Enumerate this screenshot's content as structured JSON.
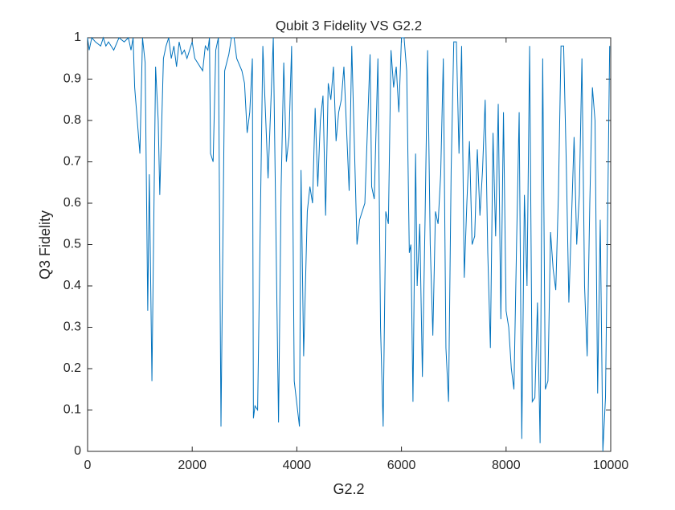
{
  "chart_data": {
    "type": "line",
    "title": "Qubit 3 Fidelity VS G2.2",
    "xlabel": "G2.2",
    "ylabel": "Q3 Fidelity",
    "color": "#0072bd",
    "grid": false,
    "x": [
      0,
      30,
      80,
      150,
      250,
      300,
      350,
      400,
      500,
      600,
      700,
      780,
      830,
      870,
      900,
      1000,
      1050,
      1100,
      1150,
      1180,
      1230,
      1300,
      1350,
      1380,
      1450,
      1500,
      1550,
      1600,
      1650,
      1700,
      1750,
      1800,
      1850,
      1900,
      1950,
      2000,
      2050,
      2150,
      2200,
      2250,
      2300,
      2330,
      2350,
      2400,
      2450,
      2500,
      2550,
      2620,
      2700,
      2750,
      2800,
      2850,
      2950,
      3000,
      3050,
      3100,
      3150,
      3170,
      3200,
      3250,
      3350,
      3450,
      3550,
      3650,
      3700,
      3750,
      3800,
      3850,
      3900,
      3950,
      4050,
      4080,
      4130,
      4200,
      4250,
      4300,
      4350,
      4400,
      4450,
      4500,
      4550,
      4600,
      4650,
      4700,
      4750,
      4800,
      4850,
      4900,
      5000,
      5050,
      5150,
      5200,
      5300,
      5400,
      5430,
      5480,
      5550,
      5600,
      5650,
      5700,
      5750,
      5800,
      5850,
      5900,
      5950,
      6000,
      6050,
      6100,
      6150,
      6180,
      6220,
      6270,
      6300,
      6350,
      6400,
      6450,
      6500,
      6550,
      6600,
      6650,
      6700,
      6750,
      6800,
      6850,
      6900,
      6950,
      7000,
      7050,
      7100,
      7150,
      7200,
      7250,
      7300,
      7350,
      7400,
      7450,
      7500,
      7550,
      7600,
      7650,
      7700,
      7750,
      7800,
      7850,
      7900,
      7950,
      8000,
      8050,
      8100,
      8150,
      8200,
      8250,
      8300,
      8350,
      8400,
      8450,
      8500,
      8550,
      8600,
      8650,
      8700,
      8750,
      8800,
      8850,
      8900,
      8950,
      9000,
      9050,
      9100,
      9150,
      9200,
      9250,
      9300,
      9350,
      9400,
      9450,
      9500,
      9550,
      9600,
      9650,
      9700,
      9750,
      9800,
      9850,
      9900,
      9980
    ],
    "values": [
      1,
      0.97,
      1,
      0.99,
      0.98,
      1,
      0.98,
      0.99,
      0.97,
      1,
      0.99,
      1,
      0.97,
      1,
      0.88,
      0.72,
      1,
      0.94,
      0.34,
      0.67,
      0.17,
      0.93,
      0.8,
      0.62,
      0.95,
      0.98,
      1,
      0.95,
      0.98,
      0.93,
      0.99,
      0.96,
      0.97,
      0.95,
      0.97,
      0.99,
      0.95,
      0.93,
      0.92,
      0.98,
      0.97,
      1,
      0.72,
      0.7,
      0.97,
      1,
      0.06,
      0.92,
      0.96,
      1,
      1,
      0.95,
      0.92,
      0.89,
      0.77,
      0.82,
      0.95,
      0.08,
      0.11,
      0.1,
      0.98,
      0.66,
      1,
      0.07,
      0.64,
      0.94,
      0.7,
      0.76,
      0.98,
      0.17,
      0.06,
      0.68,
      0.23,
      0.58,
      0.64,
      0.6,
      0.83,
      0.64,
      0.8,
      0.86,
      0.57,
      0.89,
      0.85,
      0.93,
      0.75,
      0.82,
      0.85,
      0.93,
      0.63,
      0.98,
      0.5,
      0.56,
      0.6,
      0.96,
      0.64,
      0.61,
      0.95,
      0.3,
      0.06,
      0.58,
      0.55,
      0.97,
      0.88,
      0.93,
      0.82,
      1,
      1,
      0.92,
      0.48,
      0.5,
      0.12,
      0.72,
      0.4,
      0.55,
      0.18,
      0.55,
      0.97,
      0.5,
      0.28,
      0.58,
      0.55,
      0.67,
      0.95,
      0.25,
      0.12,
      0.68,
      0.99,
      0.99,
      0.72,
      0.98,
      0.42,
      0.6,
      0.75,
      0.5,
      0.52,
      0.73,
      0.57,
      0.68,
      0.85,
      0.48,
      0.25,
      0.77,
      0.52,
      0.84,
      0.32,
      0.82,
      0.34,
      0.3,
      0.2,
      0.15,
      0.5,
      0.82,
      0.03,
      0.62,
      0.4,
      0.98,
      0.12,
      0.13,
      0.36,
      0.02,
      0.95,
      0.15,
      0.17,
      0.53,
      0.44,
      0.39,
      0.62,
      0.98,
      0.98,
      0.7,
      0.36,
      0.56,
      0.76,
      0.5,
      0.62,
      0.95,
      0.4,
      0.23,
      0.6,
      0.88,
      0.8,
      0.14,
      0.56,
      0,
      0.13,
      0.98
    ],
    "xlim": [
      0,
      10000
    ],
    "xticks": [
      0,
      2000,
      4000,
      6000,
      8000,
      10000
    ],
    "ylim": [
      0,
      1
    ],
    "yticks": [
      0,
      0.1,
      0.2,
      0.3,
      0.4,
      0.5,
      0.6,
      0.7,
      0.8,
      0.9,
      1
    ]
  }
}
